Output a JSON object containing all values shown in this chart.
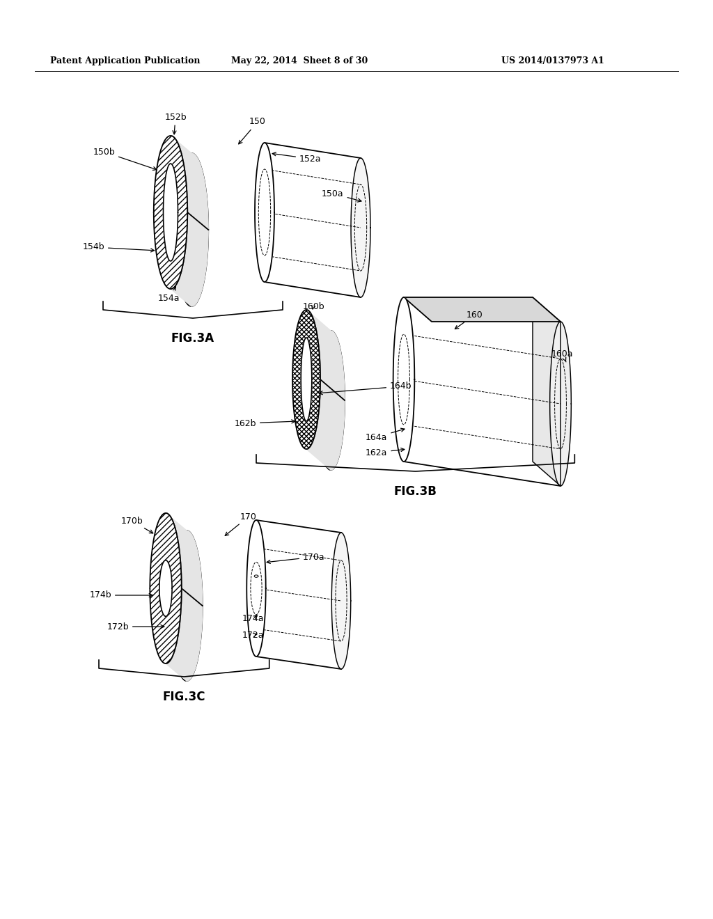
{
  "header_left": "Patent Application Publication",
  "header_center": "May 22, 2014  Sheet 8 of 30",
  "header_right": "US 2014/0137973 A1",
  "fig3a_label": "FIG.3A",
  "fig3b_label": "FIG.3B",
  "fig3c_label": "FIG.3C",
  "bg_color": "#ffffff",
  "line_color": "#000000"
}
